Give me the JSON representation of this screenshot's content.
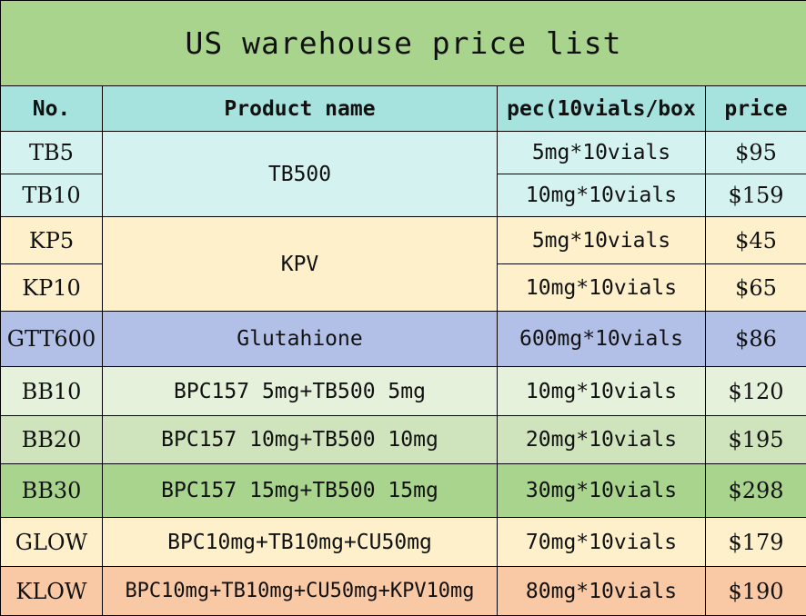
{
  "title": "US warehouse price list",
  "headers": {
    "no": "No.",
    "product": "Product name",
    "spec": "pec(10vials/box",
    "price": "price"
  },
  "rows": [
    {
      "no": "TB5",
      "product": "TB500",
      "spec": "5mg*10vials",
      "price": "$95"
    },
    {
      "no": "TB10",
      "product": "",
      "spec": "10mg*10vials",
      "price": "$159"
    },
    {
      "no": "KP5",
      "product": "KPV",
      "spec": "5mg*10vials",
      "price": "$45"
    },
    {
      "no": "KP10",
      "product": "",
      "spec": "10mg*10vials",
      "price": "$65"
    },
    {
      "no": "GTT600",
      "product": "Glutahione",
      "spec": "600mg*10vials",
      "price": "$86"
    },
    {
      "no": "BB10",
      "product": "BPC157 5mg+TB500 5mg",
      "spec": "10mg*10vials",
      "price": "$120"
    },
    {
      "no": "BB20",
      "product": "BPC157 10mg+TB500 10mg",
      "spec": "20mg*10vials",
      "price": "$195"
    },
    {
      "no": "BB30",
      "product": "BPC157 15mg+TB500 15mg",
      "spec": "30mg*10vials",
      "price": "$298"
    },
    {
      "no": "GLOW",
      "product": "BPC10mg+TB10mg+CU50mg",
      "spec": "70mg*10vials",
      "price": "$179"
    },
    {
      "no": "KLOW",
      "product": "BPC10mg+TB10mg+CU50mg+KPV10mg",
      "spec": "80mg*10vials",
      "price": "$190"
    }
  ]
}
